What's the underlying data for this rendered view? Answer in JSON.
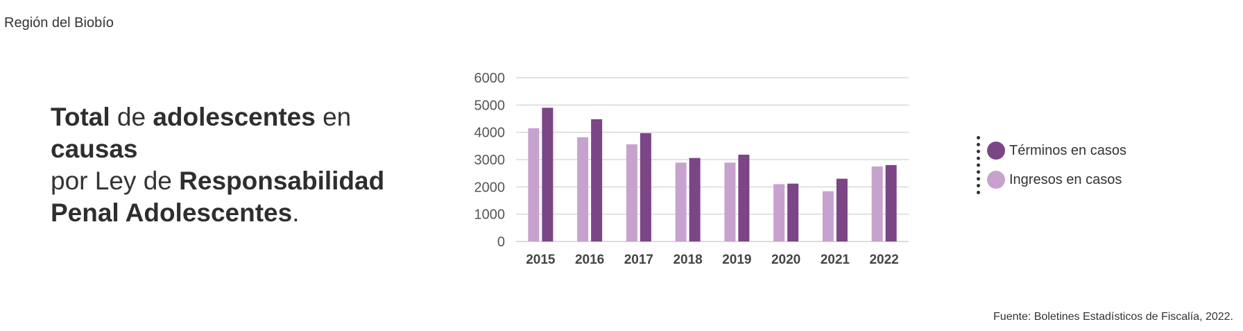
{
  "region": "Región del Biobío",
  "headline": {
    "p1": "Total",
    "p2": " de ",
    "p3": "adolescentes",
    "p4": " en ",
    "p5": "causas",
    "p6": "por Ley de ",
    "p7": "Responsabilidad",
    "p8": "Penal Adolescentes",
    "p9": "."
  },
  "source": "Fuente: Boletines Estadísticos de Fiscalía, 2022.",
  "chart_data": {
    "type": "bar",
    "categories": [
      "2015",
      "2016",
      "2017",
      "2018",
      "2019",
      "2020",
      "2021",
      "2022"
    ],
    "series": [
      {
        "name": "Ingresos en casos",
        "color": "#c8a2cf",
        "values": [
          4150,
          3820,
          3560,
          2890,
          2890,
          2100,
          1840,
          2750
        ]
      },
      {
        "name": "Términos en casos",
        "color": "#7b4586",
        "values": [
          4900,
          4480,
          3970,
          3060,
          3180,
          2120,
          2300,
          2800
        ]
      }
    ],
    "ylim": [
      0,
      6000
    ],
    "yticks": [
      0,
      1000,
      2000,
      3000,
      4000,
      5000,
      6000
    ],
    "grid": true,
    "legend_position": "right"
  },
  "legend": [
    {
      "label": "Términos en casos",
      "color": "#7b4586"
    },
    {
      "label": "Ingresos en casos",
      "color": "#c8a2cf"
    }
  ]
}
